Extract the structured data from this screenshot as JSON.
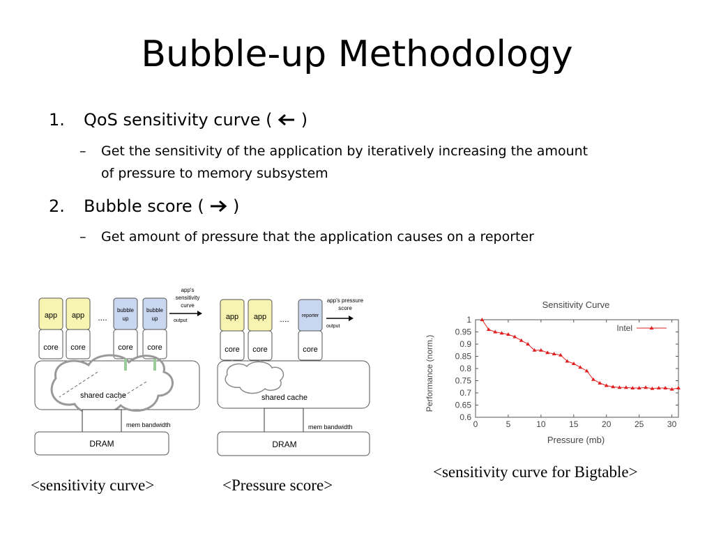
{
  "slide": {
    "title": "Bubble-up Methodology",
    "items": [
      {
        "number": "1.",
        "label_pre": "QoS sensitivity curve (",
        "arrow_icon": "arrow-left-icon",
        "label_post": ")",
        "sub": "Get the sensitivity of the application by iteratively increasing the amount of pressure to memory subsystem",
        "sub_line1": "Get the sensitivity of the application by iteratively increasing the amount",
        "sub_line2": "of pressure to memory subsystem"
      },
      {
        "number": "2.",
        "label_pre": "Bubble score (",
        "arrow_icon": "arrow-right-icon",
        "label_post": ")",
        "sub": "Get amount of pressure that the application causes on a reporter"
      }
    ],
    "dash": "–"
  },
  "diagram_left": {
    "boxes": [
      "app",
      "app",
      "bubble up",
      "bubble up"
    ],
    "bubble_line1": "bubble",
    "bubble_line2": "up",
    "core": "core",
    "dots": "....",
    "output_label_1": "app's",
    "output_label_2": "sensitivity",
    "output_label_3": "curve",
    "output": "output",
    "cache": "shared cache",
    "bandwidth": "mem bandwidth",
    "dram": "DRAM",
    "caption": "<sensitivity curve>"
  },
  "diagram_right": {
    "boxes": [
      "app",
      "app",
      "reporter"
    ],
    "core": "core",
    "dots": "....",
    "output_label_1": "app's pressure",
    "output_label_2": "score",
    "output": "output",
    "cache": "shared cache",
    "bandwidth": "mem bandwidth",
    "dram": "DRAM",
    "caption": "<Pressure score>"
  },
  "colors": {
    "app": "#f7f3b0",
    "bubble": "#c9d6ef",
    "series": "#e02020"
  },
  "chart_data": {
    "type": "line",
    "title": "Sensitivity Curve",
    "xlabel": "Pressure (mb)",
    "ylabel": "Performance (norm.)",
    "xlim": [
      0,
      31
    ],
    "ylim": [
      0.6,
      1
    ],
    "xticks": [
      0,
      5,
      10,
      15,
      20,
      25,
      30
    ],
    "yticks": [
      0.6,
      0.65,
      0.7,
      0.75,
      0.8,
      0.85,
      0.9,
      0.95,
      1
    ],
    "legend": "top-right",
    "series": [
      {
        "name": "Intel",
        "x": [
          1,
          2,
          3,
          4,
          5,
          6,
          7,
          8,
          9,
          10,
          11,
          12,
          13,
          14,
          15,
          16,
          17,
          18,
          19,
          20,
          21,
          22,
          23,
          24,
          25,
          26,
          27,
          28,
          29,
          30,
          31
        ],
        "y": [
          1.0,
          0.96,
          0.95,
          0.945,
          0.94,
          0.93,
          0.915,
          0.9,
          0.875,
          0.875,
          0.865,
          0.86,
          0.855,
          0.83,
          0.82,
          0.805,
          0.79,
          0.755,
          0.74,
          0.73,
          0.725,
          0.722,
          0.722,
          0.72,
          0.72,
          0.722,
          0.718,
          0.72,
          0.72,
          0.715,
          0.72
        ]
      }
    ],
    "caption": "<sensitivity curve for Bigtable>"
  }
}
